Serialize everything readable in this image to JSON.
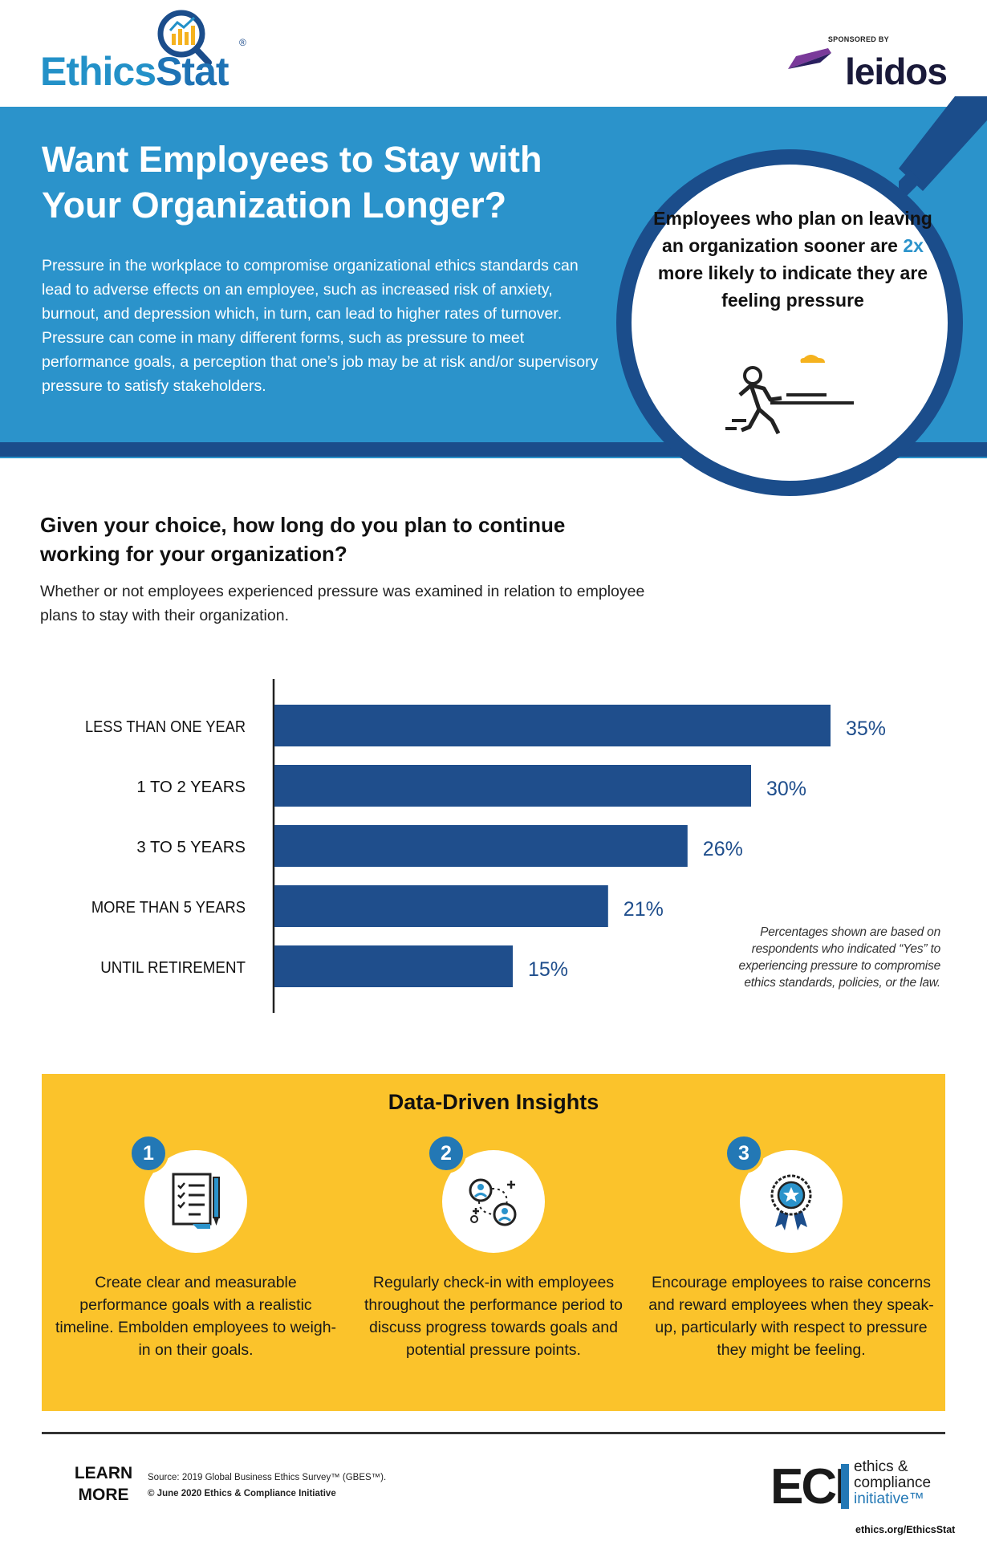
{
  "header": {
    "logo": "EthicsStat",
    "logo_part1": "Ethics",
    "logo_part2": "Stat",
    "logo_reg": "®",
    "sponsor_label": "SPONSORED BY",
    "sponsor_name": "leidos"
  },
  "hero": {
    "title": "Want Employees to Stay with Your Organization Longer?",
    "body": "Pressure in the workplace to compromise organizational ethics standards can lead to adverse effects on an employee, such as increased risk of anxiety, burnout, and depression which, in turn, can lead to higher rates of turnover. Pressure can come in many different forms, such as pressure to meet performance goals, a perception that one’s job may be at risk and/or supervisory pressure to satisfy stakeholders.",
    "callout_pre": "Employees who plan on leaving an organization sooner are ",
    "callout_highlight": "2x",
    "callout_post": " more likely to indicate they are feeling pressure",
    "accent_color": "#2b93cb",
    "dark_color": "#1b4d8b",
    "runner_icon": "running-person-icon"
  },
  "question": {
    "title": "Given your choice, how long do you plan to continue working for your organization?",
    "subtitle": "Whether or not employees experienced pressure was examined in relation to employee plans to stay with their organization."
  },
  "chart_data": {
    "type": "bar",
    "orientation": "horizontal",
    "title": "",
    "xlabel": "",
    "ylabel": "",
    "categories": [
      "LESS THAN ONE YEAR",
      "1 TO 2 YEARS",
      "3 TO 5 YEARS",
      "MORE THAN 5 YEARS",
      "UNTIL RETIREMENT"
    ],
    "values": [
      35,
      30,
      26,
      21,
      15
    ],
    "value_labels": [
      "35%",
      "30%",
      "26%",
      "21%",
      "15%"
    ],
    "xlim": [
      0,
      35
    ],
    "bar_color": "#1f4e8c",
    "label_color": "#1f4e8c",
    "grid": false,
    "legend": "none",
    "note": "Percentages shown are based on respondents who indicated “Yes” to experiencing pressure to compromise ethics standards, policies, or the law."
  },
  "insights": {
    "title": "Data-Driven Insights",
    "background": "#fbc32b",
    "items": [
      {
        "number": "1",
        "icon": "checklist-icon",
        "text": "Create clear and measurable performance goals with a realistic timeline. Embolden employees to weigh-in on their goals."
      },
      {
        "number": "2",
        "icon": "people-connection-icon",
        "text": "Regularly check-in with employees throughout the performance period to discuss progress towards goals and potential pressure points."
      },
      {
        "number": "3",
        "icon": "award-ribbon-icon",
        "text": "Encourage employees to raise concerns and reward employees when they speak-up, particularly with respect to pressure they might be feeling."
      }
    ]
  },
  "footer": {
    "learn_more": "LEARN MORE",
    "source": "Source: 2019 Global Business Ethics Survey™ (GBES™).",
    "copyright": "© June 2020 Ethics & Compliance Initiative",
    "eci_letters": "ECI",
    "eci_line1": "ethics &",
    "eci_line2": "compliance",
    "eci_line3": "initiative™",
    "url": "ethics.org/EthicsStat"
  }
}
